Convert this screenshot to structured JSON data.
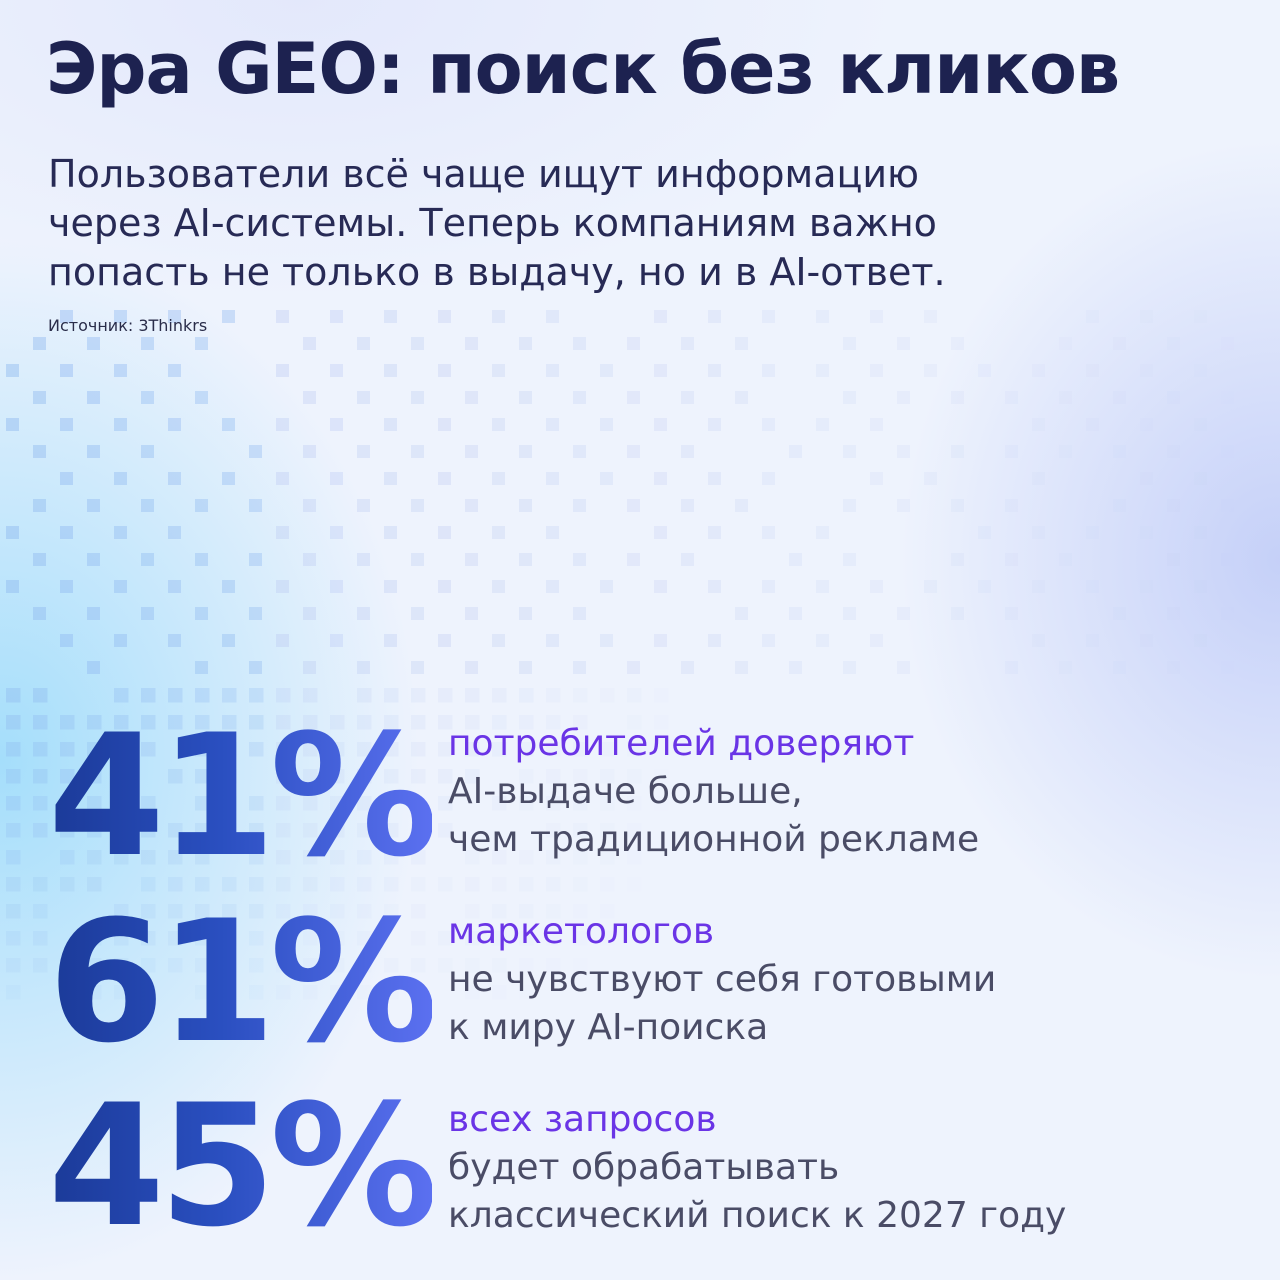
{
  "title": "Эра GEO: поиск без кликов",
  "subtitle": [
    "Пользователи всё чаще ищут информацию",
    "через AI-системы. Теперь компаниям важно",
    "попасть не только в выдачу, но и в AI-ответ."
  ],
  "source": "Источник: 3Thinkrs",
  "colors": {
    "title": "#1d2250",
    "highlight": "#6a34e6",
    "body": "#4a4c66",
    "number_start": "#1b3a98",
    "number_end": "#5b70f0"
  },
  "stats": [
    {
      "value": "41%",
      "highlight": "потребителей доверяют",
      "lines": [
        "AI-выдаче больше,",
        "чем традиционной рекламе"
      ]
    },
    {
      "value": "61%",
      "highlight": "маркетологов",
      "lines": [
        "не чувствуют себя готовыми",
        "к миру AI-поиска"
      ]
    },
    {
      "value": "45%",
      "highlight": "всех запросов",
      "lines": [
        "будет обрабатывать",
        "классический поиск к 2027 году"
      ]
    }
  ]
}
